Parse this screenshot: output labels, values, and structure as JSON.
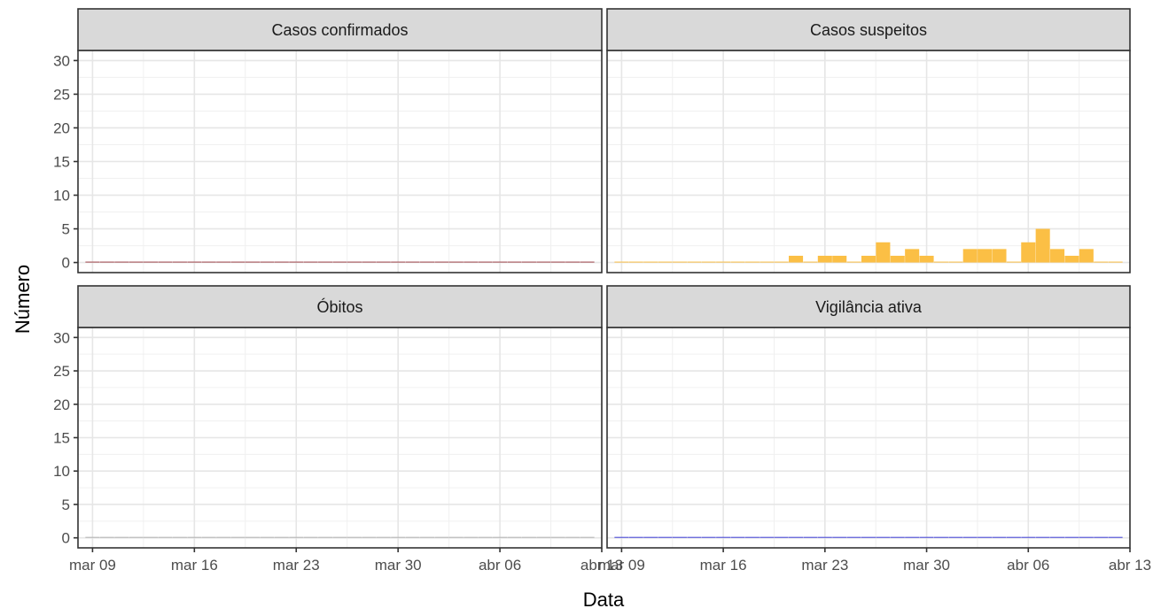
{
  "chart_data": {
    "type": "bar",
    "layout": "facet_wrap 2x2",
    "xlabel": "Data",
    "ylabel": "Número",
    "x_ticks": [
      "mar 09",
      "mar 16",
      "mar 23",
      "mar 30",
      "abr 06",
      "abr 13"
    ],
    "x_range": [
      "2020-03-08",
      "2020-04-13"
    ],
    "ylim": [
      -1.5,
      31.5
    ],
    "y_ticks": [
      0,
      5,
      10,
      15,
      20,
      25,
      30
    ],
    "grid": true,
    "theme": "bw",
    "x": [
      "2020-03-09",
      "2020-03-10",
      "2020-03-11",
      "2020-03-12",
      "2020-03-13",
      "2020-03-14",
      "2020-03-15",
      "2020-03-16",
      "2020-03-17",
      "2020-03-18",
      "2020-03-19",
      "2020-03-20",
      "2020-03-21",
      "2020-03-22",
      "2020-03-23",
      "2020-03-24",
      "2020-03-25",
      "2020-03-26",
      "2020-03-27",
      "2020-03-28",
      "2020-03-29",
      "2020-03-30",
      "2020-03-31",
      "2020-04-01",
      "2020-04-02",
      "2020-04-03",
      "2020-04-04",
      "2020-04-05",
      "2020-04-06",
      "2020-04-07",
      "2020-04-08",
      "2020-04-09",
      "2020-04-10",
      "2020-04-11",
      "2020-04-12"
    ],
    "panels": [
      {
        "name": "Casos confirmados",
        "color": "#a0444a",
        "values": [
          0,
          0,
          0,
          0,
          0,
          0,
          0,
          0,
          0,
          0,
          0,
          0,
          0,
          0,
          0,
          0,
          0,
          0,
          0,
          0,
          0,
          0,
          0,
          0,
          0,
          0,
          0,
          0,
          0,
          0,
          0,
          0,
          0,
          0,
          0
        ]
      },
      {
        "name": "Casos suspeitos",
        "color": "#fbbf45",
        "values": [
          0,
          0,
          0,
          0,
          0,
          0,
          0,
          0,
          0,
          0,
          0,
          0,
          1,
          0,
          1,
          1,
          0,
          1,
          3,
          1,
          2,
          1,
          0,
          0,
          2,
          2,
          2,
          0,
          3,
          5,
          2,
          1,
          2,
          0,
          0
        ]
      },
      {
        "name": "Óbitos",
        "color": "#b0b0b0",
        "values": [
          0,
          0,
          0,
          0,
          0,
          0,
          0,
          0,
          0,
          0,
          0,
          0,
          0,
          0,
          0,
          0,
          0,
          0,
          0,
          0,
          0,
          0,
          0,
          0,
          0,
          0,
          0,
          0,
          0,
          0,
          0,
          0,
          0,
          0,
          0
        ]
      },
      {
        "name": "Vigilância ativa",
        "color": "#3a3ad6",
        "values": [
          0,
          0,
          0,
          0,
          0,
          0,
          0,
          0,
          0,
          0,
          0,
          0,
          0,
          0,
          0,
          0,
          0,
          0,
          0,
          0,
          0,
          0,
          0,
          0,
          0,
          0,
          0,
          0,
          0,
          0,
          0,
          0,
          0,
          0,
          0
        ]
      }
    ]
  }
}
